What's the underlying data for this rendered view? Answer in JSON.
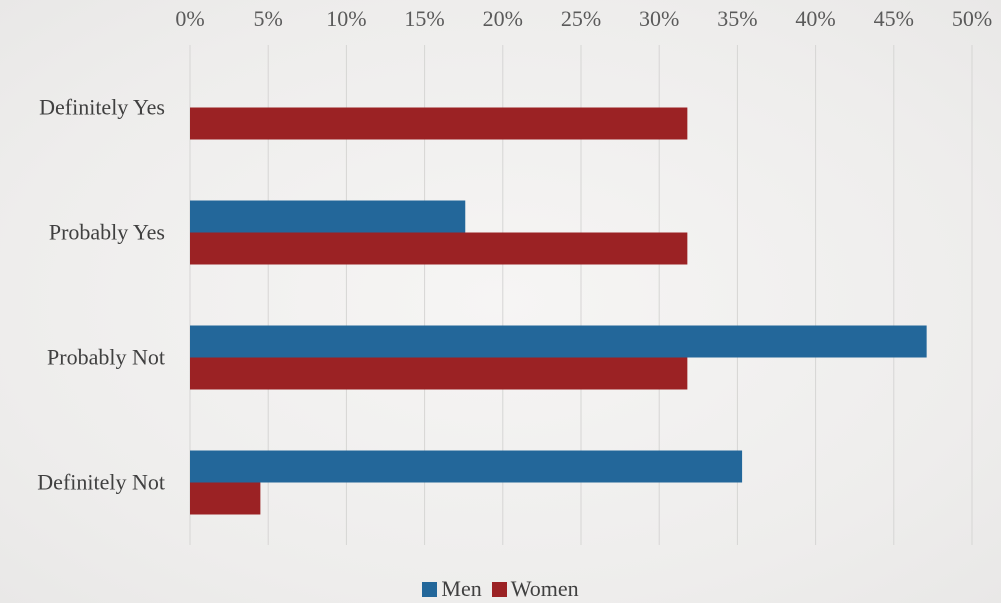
{
  "chart_data": {
    "type": "bar",
    "orientation": "horizontal",
    "title": "",
    "xlabel": "",
    "ylabel": "",
    "categories": [
      "Definitely Yes",
      "Probably Yes",
      "Probably Not",
      "Definitely Not"
    ],
    "series": [
      {
        "name": "Men",
        "values": [
          0,
          17.6,
          47.1,
          35.3
        ],
        "color": "#23679a"
      },
      {
        "name": "Women",
        "values": [
          31.8,
          31.8,
          31.8,
          4.5
        ],
        "color": "#9b2224"
      }
    ],
    "x_ticks": [
      "0%",
      "5%",
      "10%",
      "15%",
      "20%",
      "25%",
      "30%",
      "35%",
      "40%",
      "45%",
      "50%"
    ],
    "xlim": [
      0,
      50
    ],
    "x_unit": "%",
    "x_axis_position": "top",
    "grid": true,
    "legend_position": "bottom"
  }
}
